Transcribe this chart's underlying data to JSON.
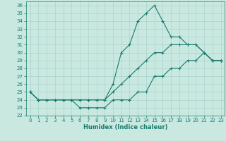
{
  "title": "",
  "xlabel": "Humidex (Indice chaleur)",
  "ylabel": "",
  "x": [
    0,
    1,
    2,
    3,
    4,
    5,
    6,
    7,
    8,
    9,
    10,
    11,
    12,
    13,
    14,
    15,
    16,
    17,
    18,
    19,
    20,
    21,
    22,
    23
  ],
  "y_min": [
    25,
    24,
    24,
    24,
    24,
    24,
    23,
    23,
    23,
    23,
    24,
    24,
    24,
    25,
    25,
    27,
    27,
    28,
    28,
    29,
    29,
    30,
    29,
    29
  ],
  "y_mean": [
    25,
    24,
    24,
    24,
    24,
    24,
    24,
    24,
    24,
    24,
    25,
    26,
    27,
    28,
    29,
    30,
    30,
    31,
    31,
    31,
    31,
    30,
    29,
    29
  ],
  "y_max": [
    25,
    24,
    24,
    24,
    24,
    24,
    24,
    24,
    24,
    24,
    26,
    30,
    31,
    34,
    35,
    36,
    34,
    32,
    32,
    31,
    31,
    30,
    29,
    29
  ],
  "xlim": [
    -0.5,
    23.5
  ],
  "ylim": [
    22,
    36.5
  ],
  "yticks": [
    22,
    23,
    24,
    25,
    26,
    27,
    28,
    29,
    30,
    31,
    32,
    33,
    34,
    35,
    36
  ],
  "xticks": [
    0,
    1,
    2,
    3,
    4,
    5,
    6,
    7,
    8,
    9,
    10,
    11,
    12,
    13,
    14,
    15,
    16,
    17,
    18,
    19,
    20,
    21,
    22,
    23
  ],
  "line_color": "#1a7a6e",
  "bg_color": "#c8e8e0",
  "grid_color": "#aad4cc",
  "marker": "+",
  "markersize": 3.0,
  "linewidth": 0.8,
  "tick_labelsize": 5,
  "xlabel_fontsize": 6
}
